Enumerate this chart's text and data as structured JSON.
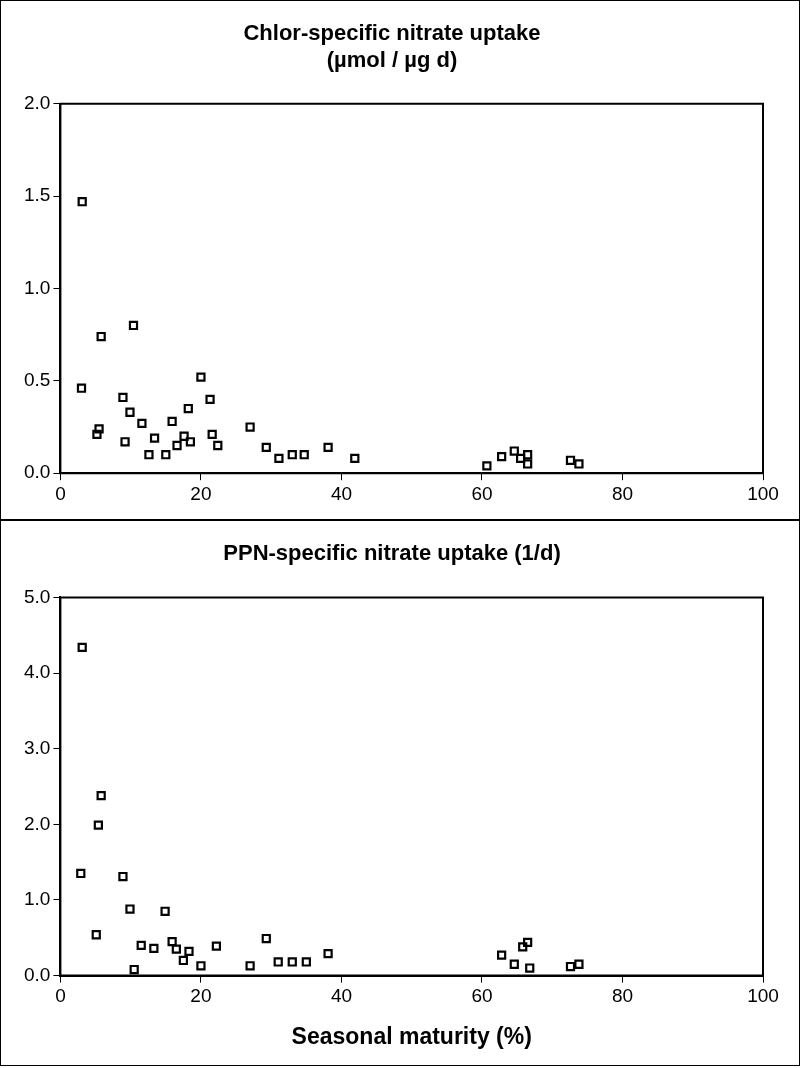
{
  "chart_data": [
    {
      "type": "scatter",
      "title": "Chlor-specific nitrate uptake\n(µmol / µg d)",
      "xlim": [
        0,
        100
      ],
      "xticks": [
        0,
        20,
        40,
        60,
        80,
        100
      ],
      "ylim": [
        0,
        2
      ],
      "yticks": [
        {
          "value": 0,
          "label": "0.0"
        },
        {
          "value": 0.5,
          "label": "0.5"
        },
        {
          "value": 1,
          "label": "1.0"
        },
        {
          "value": 1.5,
          "label": "1.5"
        },
        {
          "value": 2,
          "label": "2.0"
        }
      ],
      "grid": false,
      "legend": false,
      "marker": "square",
      "series": [
        {
          "color": "#000000",
          "x": [
            3.1,
            3.0,
            5.8,
            10.4,
            5.2,
            5.5,
            8.9,
            9.9,
            11.6,
            9.2,
            13.4,
            12.6,
            15.0,
            15.9,
            16.6,
            17.6,
            18.5,
            18.2,
            20.0,
            21.3,
            21.6,
            22.4,
            27.0,
            29.3,
            31.1,
            33.0,
            34.7,
            38.1,
            41.9,
            60.7,
            62.8,
            64.6,
            65.5,
            66.5,
            66.5,
            72.6,
            73.8
          ],
          "values": [
            1.47,
            0.46,
            0.74,
            0.8,
            0.21,
            0.24,
            0.41,
            0.33,
            0.27,
            0.17,
            0.19,
            0.1,
            0.1,
            0.28,
            0.15,
            0.2,
            0.17,
            0.35,
            0.52,
            0.4,
            0.21,
            0.15,
            0.25,
            0.14,
            0.08,
            0.1,
            0.1,
            0.14,
            0.08,
            0.04,
            0.09,
            0.12,
            0.08,
            0.1,
            0.05,
            0.07,
            0.05
          ]
        }
      ]
    },
    {
      "type": "scatter",
      "title": "PPN-specific nitrate uptake (1/d)",
      "xlabel": "Seasonal maturity (%)",
      "xlim": [
        0,
        100
      ],
      "xticks": [
        0,
        20,
        40,
        60,
        80,
        100
      ],
      "ylim": [
        0,
        5
      ],
      "yticks": [
        {
          "value": 0,
          "label": "0.0"
        },
        {
          "value": 1,
          "label": "1.0"
        },
        {
          "value": 2,
          "label": "2.0"
        },
        {
          "value": 3,
          "label": "3.0"
        },
        {
          "value": 4,
          "label": "4.0"
        },
        {
          "value": 5,
          "label": "5.0"
        }
      ],
      "grid": false,
      "legend": false,
      "marker": "square",
      "series": [
        {
          "color": "#000000",
          "x": [
            3.1,
            5.8,
            5.4,
            2.9,
            8.9,
            9.9,
            14.9,
            5.1,
            11.5,
            13.3,
            15.9,
            18.3,
            22.2,
            29.3,
            38.1,
            10.5,
            16.5,
            17.5,
            20.0,
            27.0,
            31.0,
            33.0,
            35.0,
            62.8,
            64.6,
            65.8,
            66.5,
            66.8,
            72.6,
            73.8
          ],
          "values": [
            4.34,
            2.38,
            1.99,
            1.35,
            1.31,
            0.88,
            0.85,
            0.54,
            0.4,
            0.36,
            0.45,
            0.32,
            0.39,
            0.49,
            0.29,
            0.08,
            0.35,
            0.2,
            0.13,
            0.13,
            0.18,
            0.18,
            0.18,
            0.27,
            0.15,
            0.38,
            0.44,
            0.1,
            0.12,
            0.15
          ]
        }
      ]
    }
  ]
}
